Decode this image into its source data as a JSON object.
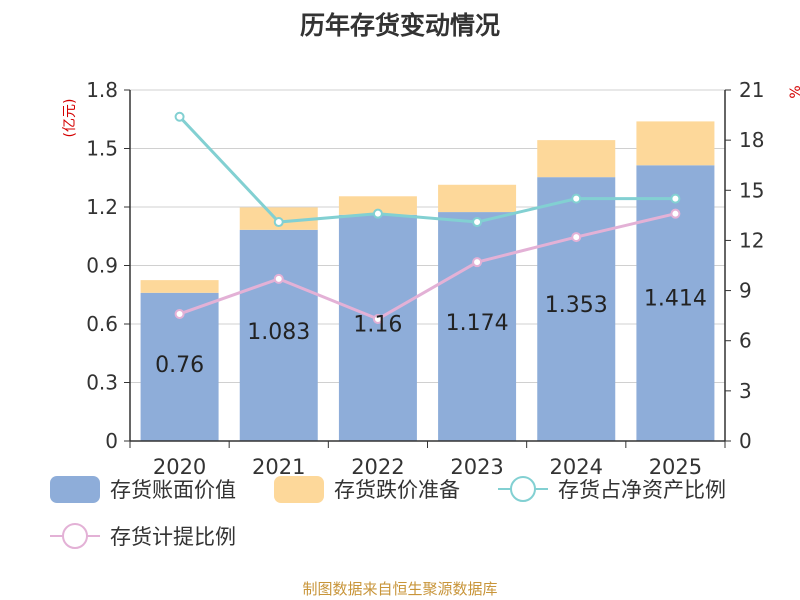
{
  "chart_data": {
    "type": "bar",
    "title": "历年存货变动情况",
    "categories": [
      "2020",
      "2021",
      "2022",
      "2023",
      "2024",
      "2025"
    ],
    "left_axis": {
      "label": "(亿元)",
      "min": 0,
      "max": 1.8,
      "step": 0.3,
      "ticks": [
        "0",
        "0.3",
        "0.6",
        "0.9",
        "1.2",
        "1.5",
        "1.8"
      ]
    },
    "right_axis": {
      "label": "%",
      "min": 0,
      "max": 21,
      "step": 3,
      "ticks": [
        "0",
        "3",
        "6",
        "9",
        "12",
        "15",
        "18",
        "21"
      ]
    },
    "series": [
      {
        "name": "存货账面价值",
        "kind": "bar",
        "axis": "left",
        "color": "#8eadd9",
        "values": [
          0.76,
          1.083,
          1.16,
          1.174,
          1.353,
          1.414
        ],
        "labels": [
          "0.76",
          "1.083",
          "1.16",
          "1.174",
          "1.353",
          "1.414"
        ]
      },
      {
        "name": "存货跌价准备",
        "kind": "bar-stack",
        "axis": "left",
        "color": "#fdd89a",
        "values": [
          0.065,
          0.115,
          0.095,
          0.14,
          0.19,
          0.225
        ]
      },
      {
        "name": "存货占净资产比例",
        "kind": "line",
        "axis": "right",
        "color": "#82d0d2",
        "values": [
          19.4,
          13.1,
          13.6,
          13.1,
          14.5,
          14.5
        ]
      },
      {
        "name": "存货计提比例",
        "kind": "line",
        "axis": "right",
        "color": "#e3b1d6",
        "values": [
          7.6,
          9.7,
          7.3,
          10.7,
          12.2,
          13.6
        ]
      }
    ],
    "source": "制图数据来自恒生聚源数据库"
  }
}
